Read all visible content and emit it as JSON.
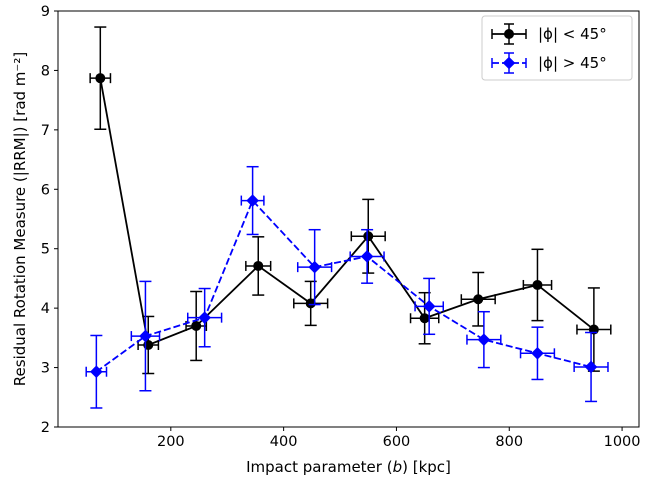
{
  "chart_data": {
    "type": "line",
    "xlabel": "Impact parameter (b) [kpc]",
    "ylabel": "Residual Rotation Measure (|RRM|) [rad m⁻²]",
    "xlim": [
      0,
      1030
    ],
    "ylim": [
      2,
      9
    ],
    "xticks": [
      200,
      400,
      600,
      800,
      1000
    ],
    "yticks": [
      2,
      3,
      4,
      5,
      6,
      7,
      8,
      9
    ],
    "grid": false,
    "legend_position": "top-right",
    "series": [
      {
        "name": "|ϕ| < 45°",
        "color": "#000000",
        "marker": "circle",
        "linestyle": "solid",
        "x": [
          75,
          160,
          245,
          355,
          448,
          550,
          650,
          745,
          850,
          950
        ],
        "y": [
          7.87,
          3.38,
          3.7,
          4.71,
          4.08,
          5.21,
          3.83,
          4.15,
          4.39,
          3.64
        ],
        "xerr": [
          18,
          18,
          18,
          22,
          30,
          30,
          25,
          30,
          25,
          30
        ],
        "yerr": [
          0.86,
          0.48,
          0.58,
          0.49,
          0.37,
          0.62,
          0.43,
          0.45,
          0.6,
          0.7
        ]
      },
      {
        "name": "|ϕ| > 45°",
        "color": "#0000ff",
        "marker": "diamond",
        "linestyle": "dashed",
        "x": [
          68,
          155,
          260,
          345,
          455,
          548,
          658,
          755,
          850,
          945
        ],
        "y": [
          2.93,
          3.53,
          3.84,
          5.81,
          4.69,
          4.87,
          4.03,
          3.47,
          3.24,
          3.01
        ],
        "xerr": [
          18,
          25,
          30,
          20,
          30,
          30,
          25,
          30,
          30,
          30
        ],
        "yerr": [
          0.61,
          0.92,
          0.49,
          0.57,
          0.63,
          0.45,
          0.47,
          0.47,
          0.44,
          0.58
        ]
      }
    ]
  }
}
